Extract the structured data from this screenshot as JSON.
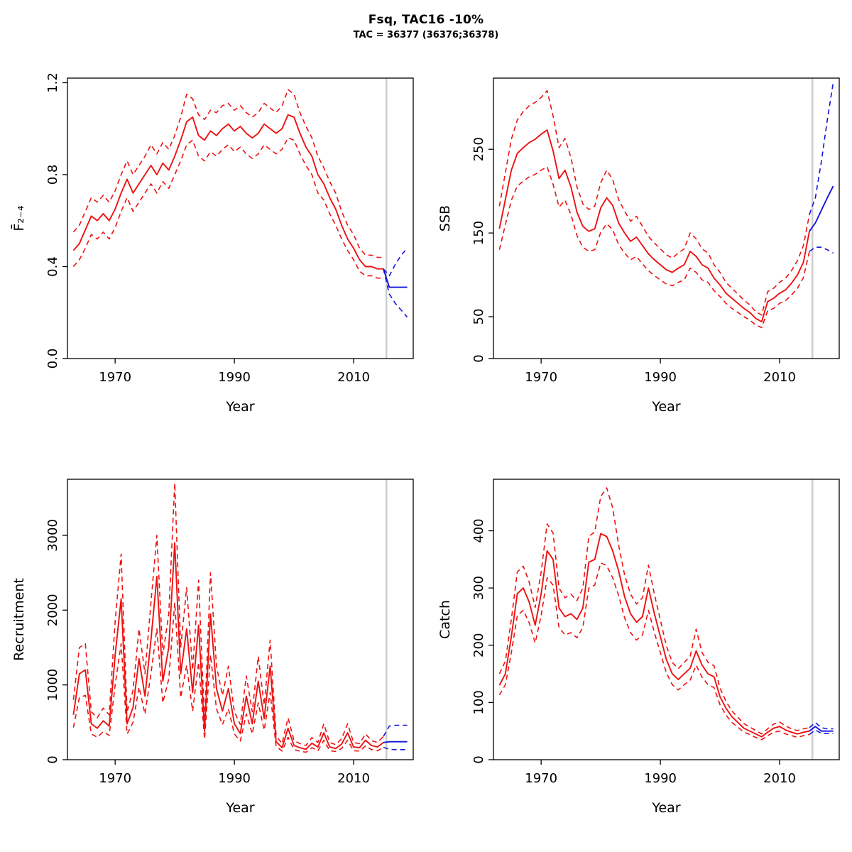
{
  "header": {
    "title": "Fsq, TAC16 -10%",
    "subtitle": "TAC = 36377 (36376;36378)"
  },
  "colors": {
    "historical": "#ee1111",
    "projection": "#1414dd",
    "divider": "#cccccc",
    "axis": "#000000"
  },
  "chart_data": {
    "type": "line",
    "title": "Fsq, TAC16 -10%",
    "subtitle": "TAC = 36377 (36376;36378)",
    "xlabel": "Year",
    "xlim": [
      1962,
      2020
    ],
    "xticks": [
      1970,
      1990,
      2010
    ],
    "xtick_labels": [
      "1970",
      "1990",
      "2010"
    ],
    "divider_year": 2015.5,
    "years": [
      1963,
      1964,
      1965,
      1966,
      1967,
      1968,
      1969,
      1970,
      1971,
      1972,
      1973,
      1974,
      1975,
      1976,
      1977,
      1978,
      1979,
      1980,
      1981,
      1982,
      1983,
      1984,
      1985,
      1986,
      1987,
      1988,
      1989,
      1990,
      1991,
      1992,
      1993,
      1994,
      1995,
      1996,
      1997,
      1998,
      1999,
      2000,
      2001,
      2002,
      2003,
      2004,
      2005,
      2006,
      2007,
      2008,
      2009,
      2010,
      2011,
      2012,
      2013,
      2014,
      2015
    ],
    "projection_years": [
      2015,
      2016,
      2017,
      2018,
      2019
    ],
    "panels": [
      {
        "name": "fishing-mortality",
        "ylabel": "F̄₂₋₄",
        "ylim": [
          0,
          1.22
        ],
        "yticks": [
          0,
          0.4,
          0.8,
          1.2
        ],
        "ytick_labels": [
          "0.0",
          "0.4",
          "0.8",
          "1.2"
        ],
        "historical": {
          "median": [
            0.47,
            0.5,
            0.56,
            0.62,
            0.6,
            0.63,
            0.6,
            0.65,
            0.72,
            0.78,
            0.72,
            0.76,
            0.8,
            0.84,
            0.8,
            0.85,
            0.82,
            0.88,
            0.95,
            1.03,
            1.05,
            0.97,
            0.95,
            0.99,
            0.97,
            1.0,
            1.02,
            0.99,
            1.01,
            0.98,
            0.96,
            0.98,
            1.02,
            1.0,
            0.98,
            1.0,
            1.06,
            1.05,
            0.98,
            0.92,
            0.88,
            0.8,
            0.76,
            0.7,
            0.65,
            0.58,
            0.52,
            0.48,
            0.43,
            0.4,
            0.4,
            0.39,
            0.39
          ],
          "upper": [
            0.55,
            0.58,
            0.64,
            0.7,
            0.68,
            0.71,
            0.68,
            0.73,
            0.8,
            0.86,
            0.8,
            0.84,
            0.88,
            0.93,
            0.89,
            0.94,
            0.91,
            0.97,
            1.05,
            1.15,
            1.13,
            1.06,
            1.04,
            1.08,
            1.07,
            1.1,
            1.11,
            1.08,
            1.1,
            1.07,
            1.05,
            1.07,
            1.11,
            1.09,
            1.07,
            1.1,
            1.17,
            1.15,
            1.07,
            1.01,
            0.96,
            0.88,
            0.83,
            0.77,
            0.72,
            0.64,
            0.58,
            0.54,
            0.48,
            0.45,
            0.45,
            0.44,
            0.44
          ],
          "lower": [
            0.4,
            0.43,
            0.48,
            0.54,
            0.52,
            0.55,
            0.52,
            0.57,
            0.64,
            0.7,
            0.64,
            0.68,
            0.72,
            0.76,
            0.72,
            0.77,
            0.74,
            0.8,
            0.86,
            0.93,
            0.95,
            0.88,
            0.86,
            0.9,
            0.88,
            0.91,
            0.93,
            0.9,
            0.92,
            0.89,
            0.87,
            0.89,
            0.93,
            0.91,
            0.89,
            0.91,
            0.96,
            0.95,
            0.89,
            0.84,
            0.8,
            0.72,
            0.69,
            0.63,
            0.58,
            0.52,
            0.47,
            0.43,
            0.38,
            0.36,
            0.36,
            0.35,
            0.35
          ]
        },
        "projection": {
          "median": [
            0.39,
            0.31,
            0.31,
            0.31,
            0.31
          ],
          "upper": [
            0.39,
            0.36,
            0.41,
            0.45,
            0.48
          ],
          "lower": [
            0.39,
            0.28,
            0.24,
            0.21,
            0.18
          ]
        }
      },
      {
        "name": "ssb",
        "ylabel": "SSB",
        "ylim": [
          0,
          335
        ],
        "yticks": [
          0,
          50,
          150,
          250
        ],
        "ytick_labels": [
          "0",
          "50",
          "150",
          "250"
        ],
        "historical": {
          "median": [
            155,
            190,
            225,
            245,
            252,
            258,
            262,
            268,
            273,
            248,
            215,
            225,
            205,
            175,
            158,
            152,
            155,
            180,
            192,
            183,
            162,
            150,
            140,
            145,
            135,
            125,
            118,
            112,
            106,
            103,
            108,
            112,
            128,
            122,
            112,
            108,
            96,
            88,
            78,
            72,
            66,
            60,
            55,
            48,
            44,
            68,
            72,
            78,
            82,
            90,
            100,
            115,
            152
          ],
          "upper": [
            182,
            222,
            262,
            285,
            295,
            302,
            306,
            312,
            320,
            290,
            252,
            263,
            240,
            205,
            185,
            178,
            182,
            210,
            225,
            214,
            190,
            176,
            164,
            170,
            158,
            146,
            138,
            131,
            124,
            120,
            126,
            131,
            150,
            143,
            131,
            126,
            112,
            103,
            91,
            84,
            77,
            70,
            64,
            56,
            52,
            80,
            84,
            91,
            96,
            105,
            117,
            135,
            172
          ],
          "lower": [
            130,
            160,
            189,
            206,
            212,
            217,
            220,
            225,
            229,
            208,
            181,
            189,
            172,
            147,
            133,
            128,
            130,
            151,
            161,
            154,
            136,
            126,
            118,
            122,
            113,
            105,
            99,
            94,
            89,
            87,
            91,
            94,
            108,
            103,
            94,
            91,
            81,
            74,
            66,
            60,
            55,
            50,
            46,
            40,
            37,
            57,
            60,
            66,
            69,
            76,
            84,
            97,
            128
          ]
        },
        "projection": {
          "median": [
            152,
            162,
            177,
            192,
            206
          ],
          "upper": [
            172,
            192,
            235,
            285,
            330
          ],
          "lower": [
            128,
            133,
            133,
            130,
            126
          ]
        }
      },
      {
        "name": "recruitment",
        "ylabel": "Recruitment",
        "ylim": [
          0,
          3750
        ],
        "yticks": [
          0,
          1000,
          2000,
          3000
        ],
        "ytick_labels": [
          "0",
          "1000",
          "2000",
          "3000"
        ],
        "historical": {
          "median": [
            600,
            1150,
            1200,
            480,
            420,
            520,
            450,
            1400,
            2150,
            480,
            700,
            1350,
            850,
            1600,
            2450,
            1050,
            1500,
            2900,
            1150,
            1750,
            900,
            1800,
            380,
            1950,
            950,
            650,
            950,
            480,
            350,
            850,
            480,
            1050,
            550,
            1250,
            240,
            160,
            420,
            190,
            160,
            140,
            220,
            170,
            360,
            170,
            150,
            210,
            360,
            170,
            160,
            260,
            190,
            170,
            230
          ],
          "upper": [
            800,
            1500,
            1550,
            640,
            560,
            690,
            600,
            1850,
            2750,
            640,
            930,
            1750,
            1150,
            2100,
            3000,
            1400,
            1950,
            3700,
            1500,
            2300,
            1200,
            2400,
            510,
            2500,
            1250,
            860,
            1250,
            640,
            470,
            1120,
            640,
            1380,
            730,
            1600,
            320,
            215,
            560,
            255,
            215,
            190,
            295,
            230,
            480,
            230,
            200,
            280,
            480,
            230,
            215,
            345,
            255,
            230,
            310
          ],
          "lower": [
            430,
            830,
            860,
            345,
            300,
            375,
            325,
            1000,
            1550,
            345,
            500,
            970,
            610,
            1150,
            1750,
            760,
            1080,
            2100,
            830,
            1260,
            650,
            1300,
            275,
            1400,
            680,
            470,
            680,
            345,
            250,
            610,
            345,
            760,
            395,
            900,
            175,
            115,
            300,
            135,
            115,
            100,
            160,
            120,
            260,
            120,
            110,
            150,
            260,
            120,
            115,
            185,
            135,
            120,
            165
          ]
        },
        "projection": {
          "median": [
            230,
            240,
            240,
            240,
            240
          ],
          "upper": [
            310,
            450,
            460,
            460,
            460
          ],
          "lower": [
            165,
            140,
            135,
            135,
            135
          ]
        }
      },
      {
        "name": "catch",
        "ylabel": "Catch",
        "ylim": [
          0,
          490
        ],
        "yticks": [
          0,
          100,
          200,
          300,
          400
        ],
        "ytick_labels": [
          "0",
          "100",
          "200",
          "300",
          "400"
        ],
        "historical": {
          "median": [
            130,
            150,
            215,
            290,
            300,
            275,
            235,
            290,
            365,
            350,
            265,
            250,
            255,
            245,
            265,
            345,
            350,
            395,
            390,
            365,
            330,
            285,
            255,
            240,
            250,
            300,
            255,
            215,
            175,
            150,
            140,
            150,
            160,
            190,
            165,
            150,
            145,
            110,
            90,
            75,
            65,
            55,
            50,
            45,
            40,
            48,
            55,
            58,
            52,
            48,
            45,
            48,
            50
          ],
          "upper": [
            150,
            172,
            245,
            328,
            338,
            310,
            266,
            328,
            412,
            396,
            300,
            283,
            289,
            278,
            300,
            390,
            398,
            460,
            475,
            440,
            375,
            323,
            289,
            272,
            283,
            340,
            289,
            244,
            199,
            170,
            159,
            170,
            181,
            228,
            187,
            170,
            164,
            125,
            102,
            85,
            74,
            63,
            57,
            51,
            45,
            54,
            62,
            66,
            59,
            54,
            51,
            54,
            56
          ],
          "lower": [
            113,
            131,
            187,
            252,
            261,
            239,
            204,
            252,
            318,
            305,
            231,
            218,
            222,
            213,
            231,
            300,
            305,
            344,
            339,
            318,
            287,
            248,
            222,
            209,
            218,
            261,
            222,
            187,
            152,
            131,
            122,
            131,
            139,
            165,
            144,
            131,
            126,
            96,
            78,
            65,
            57,
            48,
            44,
            39,
            35,
            42,
            48,
            50,
            45,
            42,
            39,
            42,
            44
          ]
        },
        "projection": {
          "median": [
            50,
            58,
            50,
            50,
            50
          ],
          "upper": [
            56,
            65,
            56,
            54,
            54
          ],
          "lower": [
            44,
            52,
            46,
            46,
            46
          ]
        }
      }
    ]
  }
}
